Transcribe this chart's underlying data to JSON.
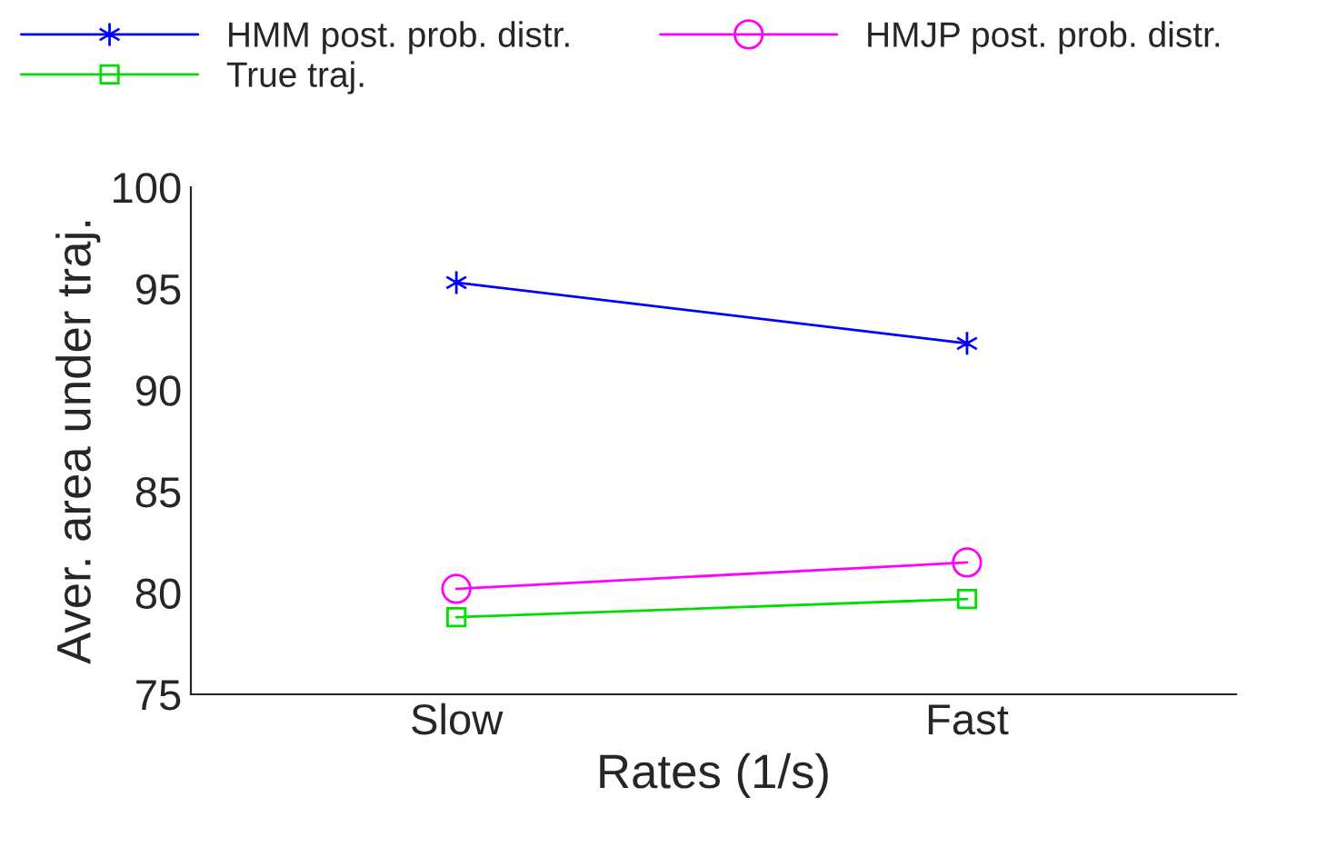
{
  "chart_data": {
    "type": "line",
    "xlabel": "Rates (1/s)",
    "ylabel": "Aver. area under traj.",
    "categories": [
      "Slow",
      "Fast"
    ],
    "series": [
      {
        "name": "HMM post. prob. distr.",
        "color": "#0000ff",
        "marker": "cross",
        "values": [
          95.3,
          92.3
        ]
      },
      {
        "name": "HMJP post. prob. distr.",
        "color": "#ff00ff",
        "marker": "circle",
        "values": [
          80.2,
          81.5
        ]
      },
      {
        "name": "True traj.",
        "color": "#00dd00",
        "marker": "square",
        "values": [
          78.8,
          79.7
        ]
      }
    ],
    "ylim": [
      75,
      100
    ],
    "yticks": [
      75,
      80,
      85,
      90,
      95,
      100
    ],
    "grid": false,
    "legend": "top",
    "line_style": "solid"
  }
}
